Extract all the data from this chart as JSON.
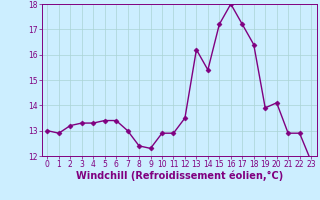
{
  "x": [
    0,
    1,
    2,
    3,
    4,
    5,
    6,
    7,
    8,
    9,
    10,
    11,
    12,
    13,
    14,
    15,
    16,
    17,
    18,
    19,
    20,
    21,
    22,
    23
  ],
  "y": [
    13.0,
    12.9,
    13.2,
    13.3,
    13.3,
    13.4,
    13.4,
    13.0,
    12.4,
    12.3,
    12.9,
    12.9,
    13.5,
    16.2,
    15.4,
    17.2,
    18.0,
    17.2,
    16.4,
    13.9,
    14.1,
    12.9,
    12.9,
    11.8
  ],
  "line_color": "#800080",
  "marker": "D",
  "marker_size": 2.5,
  "bg_color": "#cceeff",
  "grid_color": "#aad4d4",
  "xlabel": "Windchill (Refroidissement éolien,°C)",
  "xlabel_color": "#800080",
  "tick_color": "#800080",
  "ylim": [
    12,
    18
  ],
  "xlim": [
    -0.5,
    23.5
  ],
  "yticks": [
    12,
    13,
    14,
    15,
    16,
    17,
    18
  ],
  "xticks": [
    0,
    1,
    2,
    3,
    4,
    5,
    6,
    7,
    8,
    9,
    10,
    11,
    12,
    13,
    14,
    15,
    16,
    17,
    18,
    19,
    20,
    21,
    22,
    23
  ],
  "tick_fontsize": 5.5,
  "xlabel_fontsize": 7.0,
  "linewidth": 1.0
}
